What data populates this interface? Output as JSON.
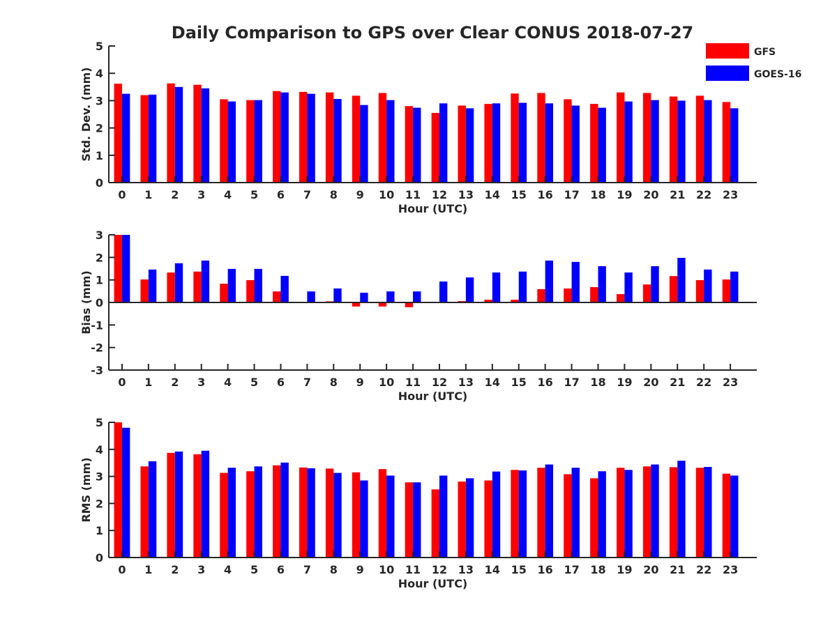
{
  "figure": {
    "title": "Daily Comparison to GPS over Clear CONUS 2018-07-27"
  },
  "legend": {
    "placement": "top-right",
    "entries": [
      {
        "label": "GFS",
        "color": "#ff0000"
      },
      {
        "label": "GOES-16",
        "color": "#0000ff"
      }
    ]
  },
  "chart_data": [
    {
      "type": "bar",
      "title": "Daily Comparison to GPS over Clear CONUS 2018-07-27",
      "xlabel": "Hour (UTC)",
      "ylabel": "Std. Dev. (mm)",
      "ylim": [
        0,
        5
      ],
      "yticks": [
        "0",
        "1",
        "2",
        "3",
        "4",
        "5"
      ],
      "categories": [
        "0",
        "1",
        "2",
        "3",
        "4",
        "5",
        "6",
        "7",
        "8",
        "9",
        "10",
        "11",
        "12",
        "13",
        "14",
        "15",
        "16",
        "17",
        "18",
        "19",
        "20",
        "21",
        "22",
        "23"
      ],
      "series": [
        {
          "name": "GFS",
          "color": "#ff0000",
          "values": [
            3.62,
            3.2,
            3.63,
            3.58,
            3.05,
            3.02,
            3.35,
            3.32,
            3.3,
            3.18,
            3.28,
            2.8,
            2.55,
            2.82,
            2.88,
            3.26,
            3.28,
            3.05,
            2.88,
            3.3,
            3.28,
            3.15,
            3.18,
            2.95
          ]
        },
        {
          "name": "GOES-16",
          "color": "#0000ff",
          "values": [
            3.25,
            3.22,
            3.5,
            3.45,
            2.97,
            3.02,
            3.3,
            3.25,
            3.06,
            2.84,
            3.02,
            2.74,
            2.9,
            2.72,
            2.9,
            2.92,
            2.9,
            2.82,
            2.74,
            2.97,
            3.02,
            3.0,
            3.02,
            2.72
          ]
        }
      ]
    },
    {
      "type": "bar",
      "title": "",
      "xlabel": "Hour (UTC)",
      "ylabel": "Bias (mm)",
      "ylim": [
        -3,
        3
      ],
      "yticks": [
        "-3",
        "-2",
        "-1",
        "0",
        "1",
        "2",
        "3"
      ],
      "categories": [
        "0",
        "1",
        "2",
        "3",
        "4",
        "5",
        "6",
        "7",
        "8",
        "9",
        "10",
        "11",
        "12",
        "13",
        "14",
        "15",
        "16",
        "17",
        "18",
        "19",
        "20",
        "21",
        "22",
        "23"
      ],
      "series": [
        {
          "name": "GFS",
          "color": "#ff0000",
          "values": [
            3.0,
            1.02,
            1.33,
            1.37,
            0.83,
            0.99,
            0.49,
            0.0,
            0.05,
            -0.18,
            -0.18,
            -0.21,
            0.0,
            0.06,
            0.12,
            0.12,
            0.59,
            0.62,
            0.68,
            0.37,
            0.8,
            1.17,
            0.99,
            1.02
          ]
        },
        {
          "name": "GOES-16",
          "color": "#0000ff",
          "values": [
            3.0,
            1.46,
            1.74,
            1.86,
            1.49,
            1.49,
            1.18,
            0.49,
            0.62,
            0.43,
            0.49,
            0.49,
            0.93,
            1.11,
            1.33,
            1.37,
            1.86,
            1.8,
            1.61,
            1.33,
            1.61,
            1.98,
            1.46,
            1.37
          ]
        }
      ]
    },
    {
      "type": "bar",
      "title": "",
      "xlabel": "Hour (UTC)",
      "ylabel": "RMS (mm)",
      "ylim": [
        0,
        5
      ],
      "yticks": [
        "0",
        "1",
        "2",
        "3",
        "4",
        "5"
      ],
      "categories": [
        "0",
        "1",
        "2",
        "3",
        "4",
        "5",
        "6",
        "7",
        "8",
        "9",
        "10",
        "11",
        "12",
        "13",
        "14",
        "15",
        "16",
        "17",
        "18",
        "19",
        "20",
        "21",
        "22",
        "23"
      ],
      "series": [
        {
          "name": "GFS",
          "color": "#ff0000",
          "values": [
            5.02,
            3.37,
            3.87,
            3.82,
            3.13,
            3.19,
            3.41,
            3.33,
            3.29,
            3.15,
            3.27,
            2.78,
            2.52,
            2.81,
            2.85,
            3.24,
            3.32,
            3.08,
            2.93,
            3.32,
            3.37,
            3.34,
            3.32,
            3.1
          ]
        },
        {
          "name": "GOES-16",
          "color": "#0000ff",
          "values": [
            4.8,
            3.56,
            3.92,
            3.95,
            3.32,
            3.37,
            3.51,
            3.3,
            3.13,
            2.85,
            3.03,
            2.78,
            3.03,
            2.93,
            3.18,
            3.22,
            3.44,
            3.32,
            3.19,
            3.24,
            3.44,
            3.58,
            3.35,
            3.03
          ]
        }
      ]
    }
  ]
}
